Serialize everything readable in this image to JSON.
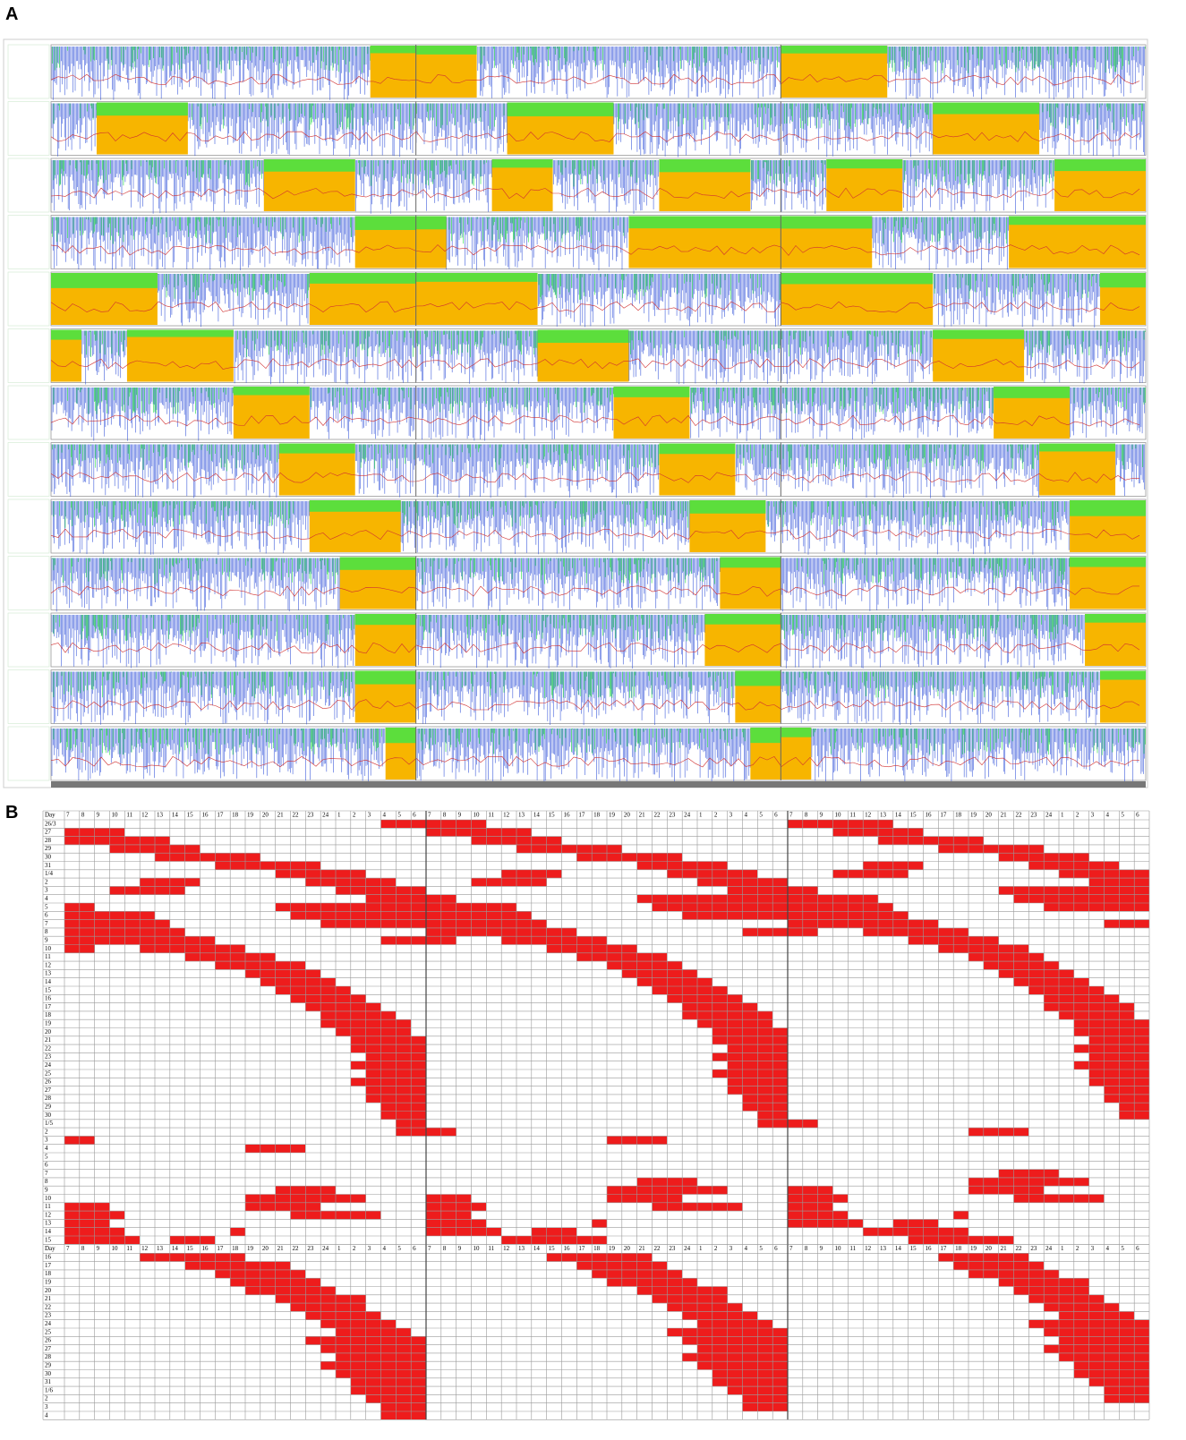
{
  "panel_a": {
    "label": "A"
  },
  "panel_b": {
    "label": "B",
    "day_header": "Day",
    "hours": [
      "7",
      "8",
      "9",
      "10",
      "11",
      "12",
      "13",
      "14",
      "15",
      "16",
      "17",
      "18",
      "19",
      "20",
      "21",
      "22",
      "23",
      "24",
      "1",
      "2",
      "3",
      "4",
      "5",
      "6"
    ],
    "sections": [
      {
        "days": [
          {
            "label": "26/3",
            "sleep": [
              [
                21,
                24
              ]
            ]
          },
          {
            "label": "27",
            "sleep": [
              [
                0,
                4
              ]
            ]
          },
          {
            "label": "28",
            "sleep": [
              [
                0,
                7
              ]
            ]
          },
          {
            "label": "29",
            "sleep": [
              [
                3,
                9
              ]
            ]
          },
          {
            "label": "30",
            "sleep": [
              [
                6,
                13
              ]
            ]
          },
          {
            "label": "31",
            "sleep": [
              [
                10,
                17
              ]
            ]
          },
          {
            "label": "1/4",
            "sleep": [
              [
                14,
                20
              ]
            ]
          },
          {
            "label": "2",
            "sleep": [
              [
                5,
                9
              ],
              [
                16,
                22
              ]
            ]
          },
          {
            "label": "3",
            "sleep": [
              [
                3,
                8
              ],
              [
                18,
                24
              ]
            ]
          },
          {
            "label": "4",
            "sleep": [
              [
                20,
                24
              ]
            ]
          },
          {
            "label": "5",
            "sleep": [
              [
                0,
                2
              ],
              [
                14,
                24
              ]
            ]
          },
          {
            "label": "6",
            "sleep": [
              [
                0,
                6
              ],
              [
                15,
                24
              ]
            ]
          },
          {
            "label": "7",
            "sleep": [
              [
                0,
                7
              ],
              [
                17,
                24
              ]
            ]
          },
          {
            "label": "8",
            "sleep": [
              [
                0,
                8
              ]
            ]
          },
          {
            "label": "9",
            "sleep": [
              [
                0,
                10
              ],
              [
                21,
                24
              ]
            ]
          },
          {
            "label": "10",
            "sleep": [
              [
                0,
                2
              ],
              [
                5,
                12
              ]
            ]
          },
          {
            "label": "11",
            "sleep": [
              [
                8,
                14
              ]
            ]
          },
          {
            "label": "12",
            "sleep": [
              [
                10,
                16
              ]
            ]
          },
          {
            "label": "13",
            "sleep": [
              [
                12,
                17
              ]
            ]
          },
          {
            "label": "14",
            "sleep": [
              [
                13,
                18
              ]
            ]
          },
          {
            "label": "15",
            "sleep": [
              [
                14,
                19
              ]
            ]
          },
          {
            "label": "16",
            "sleep": [
              [
                15,
                20
              ]
            ]
          },
          {
            "label": "17",
            "sleep": [
              [
                16,
                21
              ]
            ]
          },
          {
            "label": "18",
            "sleep": [
              [
                17,
                22
              ]
            ]
          },
          {
            "label": "19",
            "sleep": [
              [
                17,
                23
              ]
            ]
          },
          {
            "label": "20",
            "sleep": [
              [
                18,
                23
              ]
            ]
          },
          {
            "label": "21",
            "sleep": [
              [
                19,
                24
              ]
            ]
          },
          {
            "label": "22",
            "sleep": [
              [
                19,
                24
              ]
            ]
          },
          {
            "label": "23",
            "sleep": [
              [
                20,
                24
              ]
            ]
          },
          {
            "label": "24",
            "sleep": [
              [
                19,
                24
              ]
            ]
          },
          {
            "label": "25",
            "sleep": [
              [
                20,
                24
              ]
            ]
          },
          {
            "label": "26",
            "sleep": [
              [
                19,
                24
              ]
            ]
          },
          {
            "label": "27",
            "sleep": [
              [
                20,
                24
              ]
            ]
          },
          {
            "label": "28",
            "sleep": [
              [
                20,
                24
              ]
            ]
          },
          {
            "label": "29",
            "sleep": [
              [
                21,
                24
              ]
            ]
          },
          {
            "label": "30",
            "sleep": [
              [
                21,
                24
              ]
            ]
          },
          {
            "label": "1/5",
            "sleep": [
              [
                22,
                24
              ]
            ]
          },
          {
            "label": "2",
            "sleep": [
              [
                22,
                24
              ]
            ]
          },
          {
            "label": "3",
            "sleep": [
              [
                0,
                2
              ]
            ]
          },
          {
            "label": "4",
            "sleep": [
              [
                12,
                16
              ]
            ]
          },
          {
            "label": "5",
            "sleep": []
          },
          {
            "label": "6",
            "sleep": []
          },
          {
            "label": "7",
            "sleep": []
          },
          {
            "label": "8",
            "sleep": []
          },
          {
            "label": "9",
            "sleep": [
              [
                14,
                18
              ]
            ]
          },
          {
            "label": "10",
            "sleep": [
              [
                12,
                20
              ]
            ]
          },
          {
            "label": "11",
            "sleep": [
              [
                0,
                3
              ],
              [
                12,
                17
              ]
            ]
          },
          {
            "label": "12",
            "sleep": [
              [
                0,
                4
              ],
              [
                15,
                21
              ]
            ]
          },
          {
            "label": "13",
            "sleep": [
              [
                0,
                3
              ]
            ]
          },
          {
            "label": "14",
            "sleep": [
              [
                0,
                4
              ],
              [
                11,
                12
              ]
            ]
          },
          {
            "label": "15",
            "sleep": [
              [
                0,
                5
              ],
              [
                7,
                10
              ]
            ]
          }
        ]
      },
      {
        "days": [
          {
            "label": "16",
            "sleep": [
              [
                5,
                12
              ]
            ]
          },
          {
            "label": "17",
            "sleep": [
              [
                8,
                15
              ]
            ]
          },
          {
            "label": "18",
            "sleep": [
              [
                10,
                16
              ]
            ]
          },
          {
            "label": "19",
            "sleep": [
              [
                11,
                17
              ]
            ]
          },
          {
            "label": "20",
            "sleep": [
              [
                12,
                18
              ]
            ]
          },
          {
            "label": "21",
            "sleep": [
              [
                14,
                20
              ]
            ]
          },
          {
            "label": "22",
            "sleep": [
              [
                15,
                20
              ]
            ]
          },
          {
            "label": "23",
            "sleep": [
              [
                16,
                21
              ]
            ]
          },
          {
            "label": "24",
            "sleep": [
              [
                17,
                22
              ]
            ]
          },
          {
            "label": "25",
            "sleep": [
              [
                18,
                23
              ]
            ]
          },
          {
            "label": "26",
            "sleep": [
              [
                16,
                24
              ]
            ]
          },
          {
            "label": "27",
            "sleep": [
              [
                17,
                24
              ]
            ]
          },
          {
            "label": "28",
            "sleep": [
              [
                18,
                24
              ]
            ]
          },
          {
            "label": "29",
            "sleep": [
              [
                17,
                24
              ]
            ]
          },
          {
            "label": "30",
            "sleep": [
              [
                18,
                24
              ]
            ]
          },
          {
            "label": "31",
            "sleep": [
              [
                19,
                24
              ]
            ]
          },
          {
            "label": "1/6",
            "sleep": [
              [
                19,
                24
              ]
            ]
          },
          {
            "label": "2",
            "sleep": [
              [
                20,
                24
              ]
            ]
          },
          {
            "label": "3",
            "sleep": [
              [
                21,
                24
              ]
            ]
          },
          {
            "label": "4",
            "sleep": [
              [
                21,
                24
              ]
            ]
          }
        ]
      }
    ]
  }
}
